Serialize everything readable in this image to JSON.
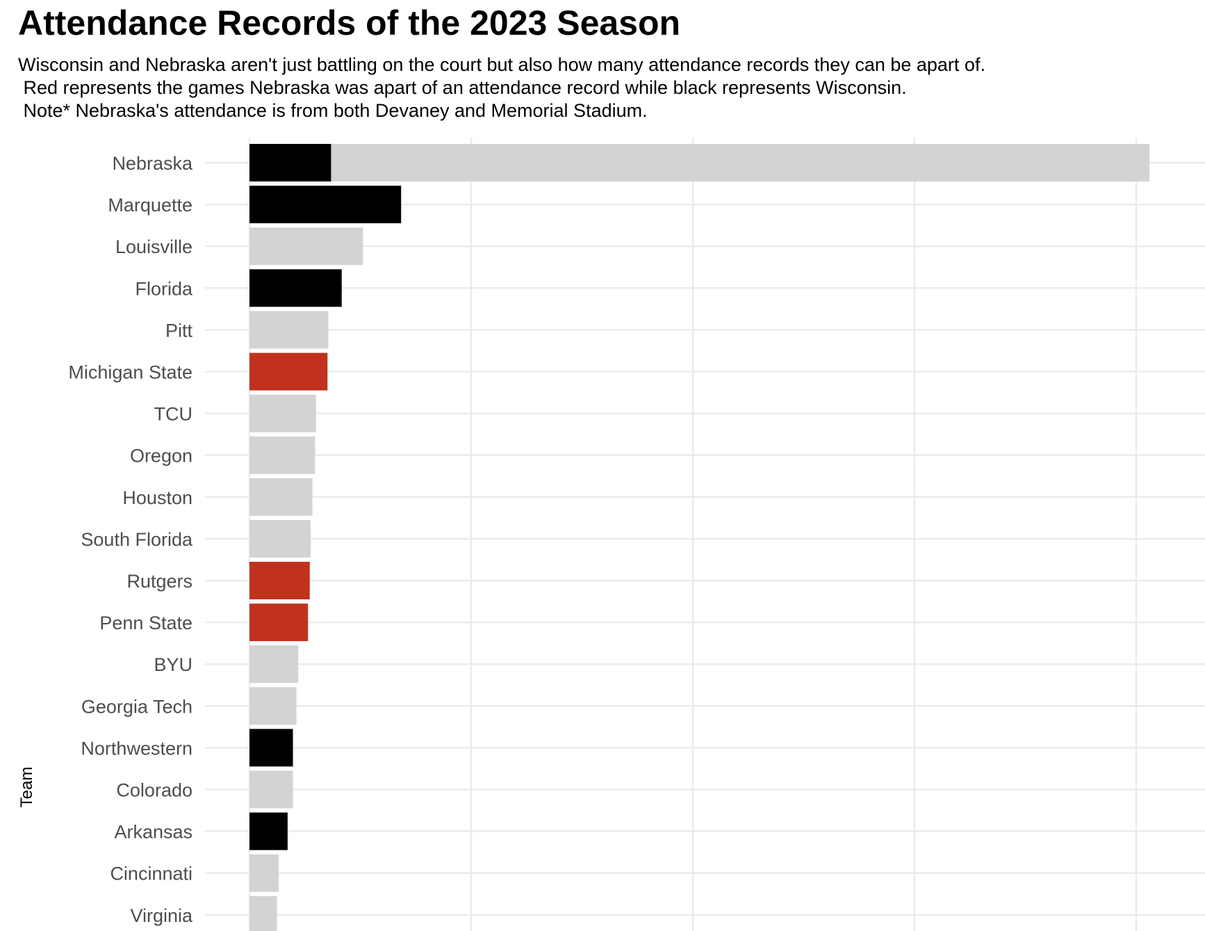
{
  "chart_data": {
    "type": "bar",
    "orientation": "horizontal",
    "title": "Attendance Records of the 2023 Season",
    "subtitle": [
      "Wisconsin and Nebraska aren't just battling on the court but also how many attendance records they can be apart of.",
      " Red represents the games Nebraska was apart of an attendance record while black represents Wisconsin.",
      " Note* Nebraska's attendance is from both Devaney and Memorial Stadium."
    ],
    "ylabel": "Team",
    "xlabel": "",
    "categories": [
      "Nebraska",
      "Marquette",
      "Louisville",
      "Florida",
      "Pitt",
      "Michigan State",
      "TCU",
      "Oregon",
      "Houston",
      "South Florida",
      "Rutgers",
      "Penn State",
      "BYU",
      "Georgia Tech",
      "Northwestern",
      "Colorado",
      "Arkansas",
      "Cincinnati",
      "Virginia"
    ],
    "values": [
      101.5,
      17.1,
      12.8,
      10.4,
      8.9,
      8.8,
      7.5,
      7.4,
      7.1,
      6.9,
      6.8,
      6.6,
      5.5,
      5.3,
      4.9,
      4.9,
      4.3,
      3.3,
      3.1
    ],
    "overlay_values": [
      9.2,
      null,
      null,
      null,
      null,
      null,
      null,
      null,
      null,
      null,
      null,
      null,
      null,
      null,
      null,
      null,
      null,
      null,
      null
    ],
    "bar_colors": [
      "#d3d3d3",
      "#000000",
      "#d3d3d3",
      "#000000",
      "#d3d3d3",
      "#c0321e",
      "#d3d3d3",
      "#d3d3d3",
      "#d3d3d3",
      "#d3d3d3",
      "#c0321e",
      "#c0321e",
      "#d3d3d3",
      "#d3d3d3",
      "#000000",
      "#d3d3d3",
      "#000000",
      "#d3d3d3",
      "#d3d3d3"
    ],
    "overlay_color": "#000000",
    "xlim": [
      0,
      106
    ],
    "x_gridlines": [
      0,
      25,
      50,
      75,
      100
    ],
    "x_tick_labels_visible": false,
    "grid": true,
    "legend": "none",
    "colors": {
      "nebraska_record": "#c0321e",
      "wisconsin_record": "#000000",
      "other": "#d3d3d3",
      "grid": "#ebebeb"
    }
  }
}
